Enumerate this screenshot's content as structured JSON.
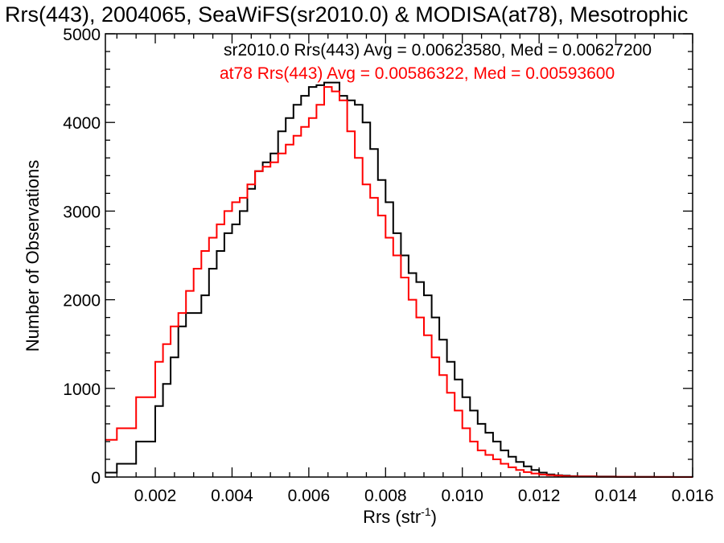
{
  "chart_data": {
    "type": "line",
    "title": "Rrs(443), 2004065, SeaWiFS(sr2010.0) & MODISA(at78), Mesotrophic",
    "xlabel_main": "Rrs (str",
    "xlabel_sup": "-1",
    "xlabel_close": ")",
    "ylabel": "Number of Observations",
    "xlim": [
      0.0007,
      0.016
    ],
    "ylim": [
      0,
      5000
    ],
    "xticks": [
      {
        "value": 0.002,
        "label": "0.002"
      },
      {
        "value": 0.004,
        "label": "0.004"
      },
      {
        "value": 0.006,
        "label": "0.006"
      },
      {
        "value": 0.008,
        "label": "0.008"
      },
      {
        "value": 0.01,
        "label": "0.010"
      },
      {
        "value": 0.012,
        "label": "0.012"
      },
      {
        "value": 0.014,
        "label": "0.014"
      },
      {
        "value": 0.016,
        "label": "0.016"
      }
    ],
    "yticks": [
      {
        "value": 0,
        "label": "0"
      },
      {
        "value": 1000,
        "label": "1000"
      },
      {
        "value": 2000,
        "label": "2000"
      },
      {
        "value": 3000,
        "label": "3000"
      },
      {
        "value": 4000,
        "label": "4000"
      },
      {
        "value": 5000,
        "label": "5000"
      }
    ],
    "legend": [
      {
        "text": "sr2010.0 Rrs(443) Avg = 0.00623580, Med = 0.00627200",
        "color": "#000000"
      },
      {
        "text": "at78 Rrs(443) Avg = 0.00586322, Med = 0.00593600",
        "color": "#ff0000"
      }
    ],
    "grid": false,
    "series": [
      {
        "color": "#000000",
        "x": [
          0.0007,
          0.001,
          0.0015,
          0.002,
          0.0022,
          0.0024,
          0.0026,
          0.0028,
          0.003,
          0.0032,
          0.0034,
          0.0036,
          0.0038,
          0.004,
          0.0042,
          0.0044,
          0.0046,
          0.0048,
          0.005,
          0.0052,
          0.0054,
          0.0056,
          0.0058,
          0.006,
          0.0062,
          0.0064,
          0.0066,
          0.0068,
          0.007,
          0.0072,
          0.0074,
          0.0076,
          0.0078,
          0.008,
          0.0082,
          0.0084,
          0.0086,
          0.0088,
          0.009,
          0.0092,
          0.0094,
          0.0096,
          0.0098,
          0.01,
          0.0102,
          0.0104,
          0.0106,
          0.0108,
          0.011,
          0.0112,
          0.0114,
          0.0116,
          0.0118,
          0.012,
          0.0122,
          0.0124,
          0.0126,
          0.0128,
          0.013,
          0.0135,
          0.014,
          0.0145,
          0.015,
          0.0155,
          0.016
        ],
        "y": [
          50,
          150,
          400,
          800,
          1050,
          1350,
          1700,
          1850,
          1850,
          2050,
          2350,
          2550,
          2750,
          2850,
          3000,
          3250,
          3450,
          3550,
          3650,
          3900,
          4050,
          4200,
          4300,
          4400,
          4420,
          4450,
          4450,
          4300,
          4250,
          4200,
          4000,
          3700,
          3350,
          3100,
          2750,
          2500,
          2300,
          2200,
          2050,
          1800,
          1550,
          1300,
          1100,
          900,
          750,
          600,
          500,
          400,
          300,
          230,
          170,
          120,
          80,
          50,
          30,
          20,
          15,
          10,
          8,
          5,
          3,
          2,
          1,
          1,
          0
        ]
      },
      {
        "color": "#ff0000",
        "x": [
          0.0007,
          0.001,
          0.0015,
          0.002,
          0.0022,
          0.0024,
          0.0026,
          0.0028,
          0.003,
          0.0032,
          0.0034,
          0.0036,
          0.0038,
          0.004,
          0.0042,
          0.0044,
          0.0046,
          0.0048,
          0.005,
          0.0052,
          0.0054,
          0.0056,
          0.0058,
          0.006,
          0.0062,
          0.0064,
          0.0066,
          0.0068,
          0.007,
          0.0072,
          0.0074,
          0.0076,
          0.0078,
          0.008,
          0.0082,
          0.0084,
          0.0086,
          0.0088,
          0.009,
          0.0092,
          0.0094,
          0.0096,
          0.0098,
          0.01,
          0.0102,
          0.0104,
          0.0106,
          0.0108,
          0.011,
          0.0112,
          0.0114,
          0.0116,
          0.0118,
          0.012,
          0.0122,
          0.0124,
          0.0126,
          0.0128,
          0.013,
          0.0135,
          0.014,
          0.0145,
          0.015,
          0.0155,
          0.016
        ],
        "y": [
          420,
          550,
          900,
          1300,
          1500,
          1700,
          1850,
          2100,
          2350,
          2550,
          2700,
          2850,
          3000,
          3100,
          3150,
          3300,
          3450,
          3500,
          3550,
          3650,
          3750,
          3850,
          3950,
          4050,
          4200,
          4400,
          4350,
          4250,
          3900,
          3600,
          3300,
          3150,
          2950,
          2700,
          2500,
          2250,
          2000,
          1800,
          1600,
          1350,
          1150,
          950,
          750,
          550,
          400,
          300,
          250,
          200,
          150,
          110,
          80,
          55,
          40,
          28,
          20,
          15,
          10,
          7,
          5,
          3,
          2,
          1,
          1,
          0,
          0
        ]
      }
    ]
  }
}
